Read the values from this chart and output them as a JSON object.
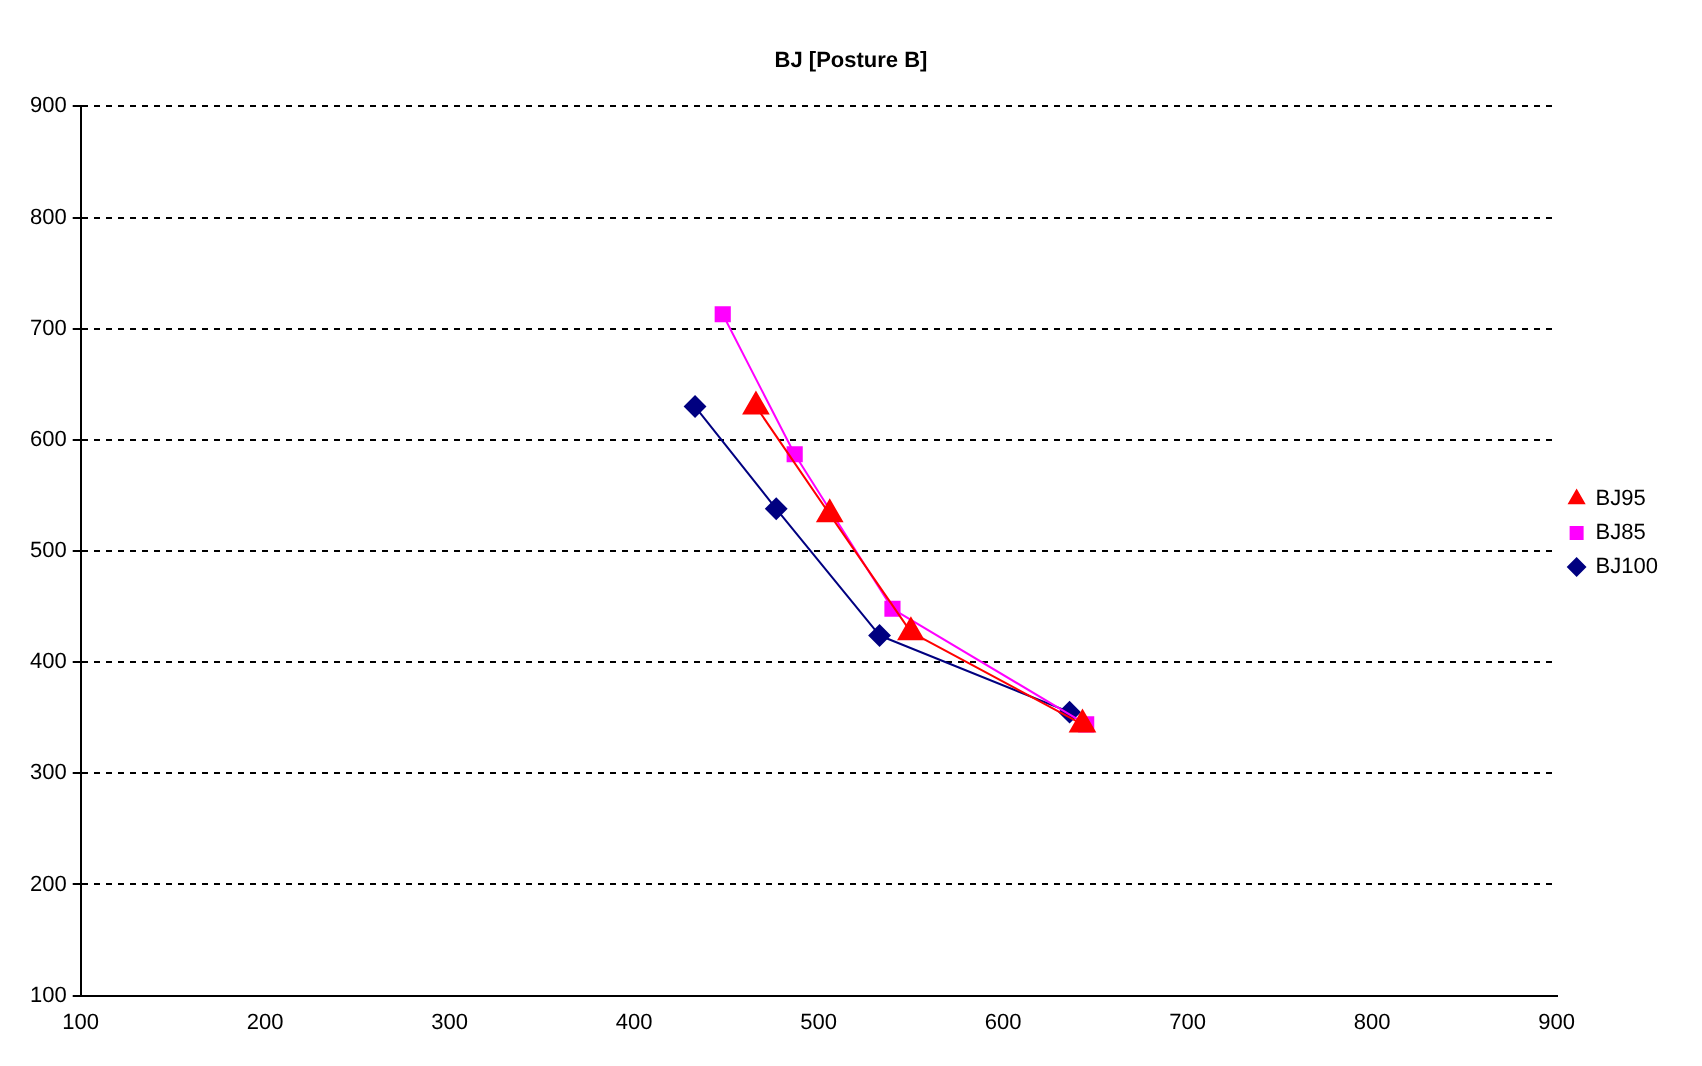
{
  "chart_data": {
    "type": "line",
    "title": "BJ [Posture B]",
    "xlim": [
      100,
      900
    ],
    "xticks": [
      100,
      200,
      300,
      400,
      500,
      600,
      700,
      800,
      900
    ],
    "ylim": [
      100,
      900
    ],
    "yticks": [
      100,
      200,
      300,
      400,
      500,
      600,
      700,
      800,
      900
    ],
    "grid": "y",
    "legend": "right",
    "line_style": "solid",
    "series": [
      {
        "name": "BJ100",
        "color": "#000080",
        "marker": "diamond",
        "x": [
          433,
          477,
          533,
          636
        ],
        "values": [
          630,
          538,
          424,
          355
        ]
      },
      {
        "name": "BJ85",
        "color": "#ff00ff",
        "marker": "square",
        "x": [
          448,
          487,
          540,
          645
        ],
        "values": [
          713,
          587,
          448,
          344
        ]
      },
      {
        "name": "BJ95",
        "color": "#ff0000",
        "marker": "triangle",
        "x": [
          466,
          506,
          550,
          643
        ],
        "values": [
          630,
          533,
          427,
          344
        ]
      }
    ]
  }
}
